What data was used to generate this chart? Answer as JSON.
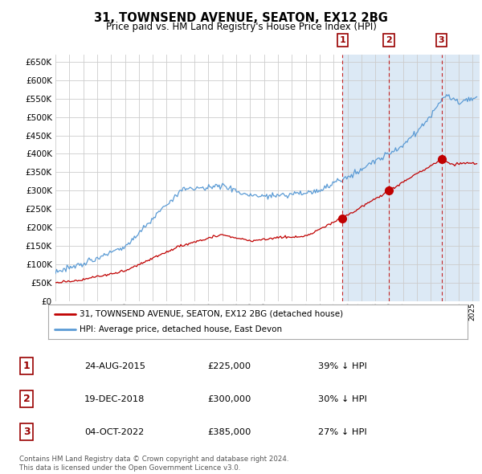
{
  "title": "31, TOWNSEND AVENUE, SEATON, EX12 2BG",
  "subtitle": "Price paid vs. HM Land Registry's House Price Index (HPI)",
  "ylim": [
    0,
    670000
  ],
  "yticks": [
    0,
    50000,
    100000,
    150000,
    200000,
    250000,
    300000,
    350000,
    400000,
    450000,
    500000,
    550000,
    600000,
    650000
  ],
  "hpi_color": "#5b9bd5",
  "price_color": "#c00000",
  "vline_color": "#c00000",
  "chart_bg": "#ffffff",
  "shaded_bg": "#dce9f5",
  "transactions": [
    {
      "date": "24-AUG-2015",
      "price": 225000,
      "label": "1",
      "year": 2015.65
    },
    {
      "date": "19-DEC-2018",
      "price": 300000,
      "label": "2",
      "year": 2018.97
    },
    {
      "date": "04-OCT-2022",
      "price": 385000,
      "label": "3",
      "year": 2022.76
    }
  ],
  "legend_line1": "31, TOWNSEND AVENUE, SEATON, EX12 2BG (detached house)",
  "legend_line2": "HPI: Average price, detached house, East Devon",
  "footnote": "Contains HM Land Registry data © Crown copyright and database right 2024.\nThis data is licensed under the Open Government Licence v3.0.",
  "table_data": [
    [
      "1",
      "24-AUG-2015",
      "£225,000",
      "39% ↓ HPI"
    ],
    [
      "2",
      "19-DEC-2018",
      "£300,000",
      "30% ↓ HPI"
    ],
    [
      "3",
      "04-OCT-2022",
      "£385,000",
      "27% ↓ HPI"
    ]
  ],
  "xmin": 1995.0,
  "xmax": 2025.5
}
